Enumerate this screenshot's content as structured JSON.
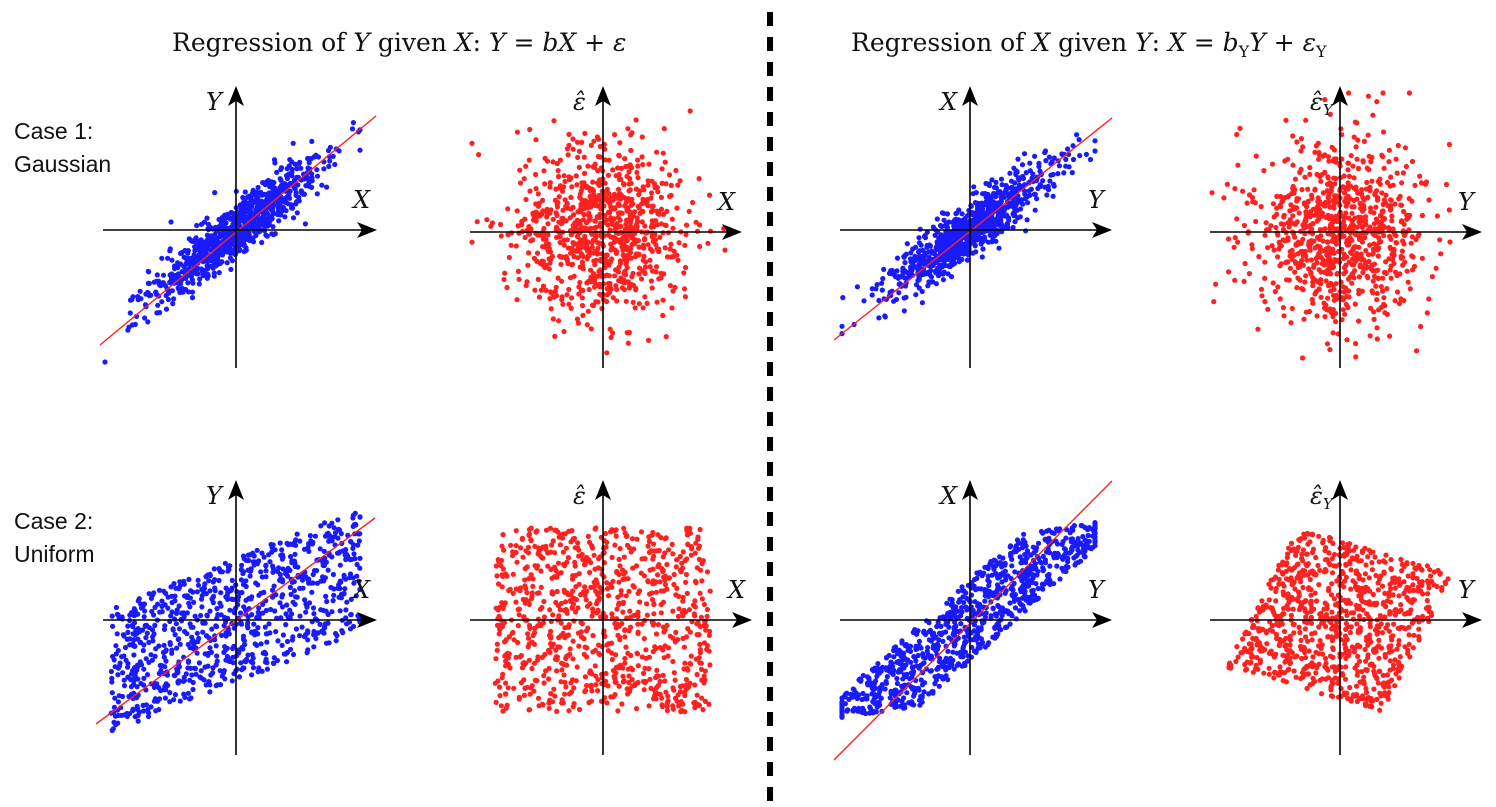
{
  "titles": {
    "left": {
      "pre": "Regression of ",
      "v1": "Y",
      "mid": " given ",
      "v2": "X",
      "colon": ": ",
      "eq": "Y = bX + ε"
    },
    "right": {
      "pre": "Regression of ",
      "v1": "X",
      "mid": " given ",
      "v2": "Y",
      "colon": ": ",
      "eq_a": "X = b",
      "eq_sub1": "Y",
      "eq_b": "Y + ε",
      "eq_sub2": "Y"
    }
  },
  "cases": [
    {
      "line1": "Case 1:",
      "line2": "Gaussian",
      "distribution": "gaussian"
    },
    {
      "line1": "Case 2:",
      "line2": "Uniform",
      "distribution": "uniform"
    }
  ],
  "panels": [
    {
      "case": 1,
      "kind": "data",
      "x_label": "X",
      "y_label": "Y",
      "point_color": "#1a1aff",
      "fit_line_color": "#ff2020"
    },
    {
      "case": 1,
      "kind": "residual",
      "x_label": "X",
      "y_label": "ε̂",
      "point_color": "#ff2020"
    },
    {
      "case": 1,
      "kind": "data",
      "x_label": "Y",
      "y_label": "X",
      "point_color": "#1a1aff",
      "fit_line_color": "#ff2020"
    },
    {
      "case": 1,
      "kind": "residual",
      "x_label": "Y",
      "y_label": "ε̂",
      "y_label_sub": "Y",
      "point_color": "#ff2020"
    },
    {
      "case": 2,
      "kind": "data",
      "x_label": "X",
      "y_label": "Y",
      "point_color": "#1a1aff",
      "fit_line_color": "#ff2020"
    },
    {
      "case": 2,
      "kind": "residual",
      "x_label": "X",
      "y_label": "ε̂",
      "point_color": "#ff2020"
    },
    {
      "case": 2,
      "kind": "data",
      "x_label": "Y",
      "y_label": "X",
      "point_color": "#1a1aff",
      "fit_line_color": "#ff2020"
    },
    {
      "case": 2,
      "kind": "residual",
      "x_label": "Y",
      "y_label": "ε̂",
      "y_label_sub": "Y",
      "point_color": "#ff2020"
    }
  ],
  "colors": {
    "blue": "#1a1aff",
    "red": "#ff2020",
    "axis": "#000000",
    "divider": "#000000"
  }
}
